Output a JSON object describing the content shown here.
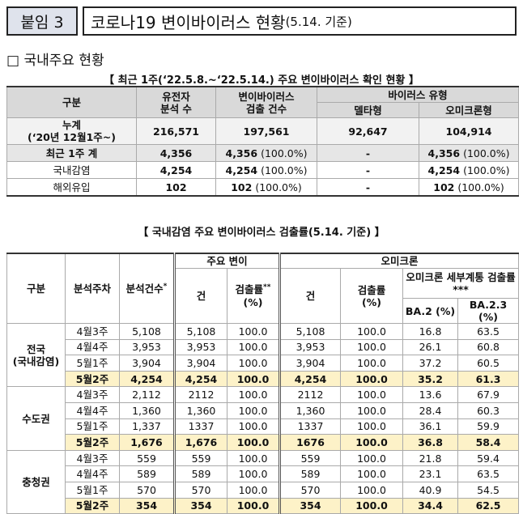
{
  "header": {
    "badge": "붙임 3",
    "title": "코로나19 변이바이러스 현황",
    "title_note": "(5.14. 기준)"
  },
  "section": "□ 국내주요 현황",
  "table1": {
    "caption": "【 최근 1주(‘22.5.8.~‘22.5.14.) 주요 변이바이러스 확인 현황 】",
    "head": {
      "gubun": "구분",
      "analysis": "유전자\n분석 수",
      "detect": "변이바이러스\n검출 건수",
      "type": "바이러스 유형",
      "delta": "델타형",
      "omicron": "오미크론형"
    },
    "rows": [
      [
        "누계\n(‘20년 12월1주~)",
        "216,571",
        "197,561",
        "92,647",
        "104,914"
      ],
      [
        "최근 1주 계",
        "4,356",
        [
          "4,356",
          "(100.0%)"
        ],
        "-",
        [
          "4,356",
          "(100.0%)"
        ]
      ],
      [
        "국내감염",
        "4,254",
        [
          "4,254",
          "(100.0%)"
        ],
        "-",
        [
          "4,254",
          "(100.0%)"
        ]
      ],
      [
        "해외유입",
        "102",
        [
          "102",
          "(100.0%)"
        ],
        "-",
        [
          "102",
          "(100.0%)"
        ]
      ]
    ]
  },
  "table2": {
    "caption": "【 국내감염 주요 변이바이러스 검출률(5.14. 기준) 】",
    "head": {
      "gubun": "구분",
      "week": "분석주차",
      "count": "분석건수",
      "count_note": "*",
      "major": "주요 변이",
      "cases": "건",
      "rate": "검출률",
      "rate_note": "**",
      "rate_unit": "(%)",
      "omicron": "오미크론",
      "cases2": "건",
      "rate2": "검출률\n(%)",
      "sub": "오미크론 세부계통 검출률***",
      "ba2": "BA.2 (%)",
      "ba23": "BA.2.3 (%)"
    },
    "groups": [
      {
        "name": "전국\n(국내감염)",
        "rows": [
          [
            "4월3주",
            "5,108",
            "5,108",
            "100.0",
            "5,108",
            "100.0",
            "16.8",
            "63.5"
          ],
          [
            "4월4주",
            "3,953",
            "3,953",
            "100.0",
            "3,953",
            "100.0",
            "26.1",
            "60.8"
          ],
          [
            "5월1주",
            "3,904",
            "3,904",
            "100.0",
            "3,904",
            "100.0",
            "37.2",
            "60.5"
          ],
          [
            "5월2주",
            "4,254",
            "4,254",
            "100.0",
            "4,254",
            "100.0",
            "35.2",
            "61.3"
          ]
        ]
      },
      {
        "name": "수도권",
        "rows": [
          [
            "4월3주",
            "2,112",
            "2112",
            "100.0",
            "2112",
            "100.0",
            "13.6",
            "67.9"
          ],
          [
            "4월4주",
            "1,360",
            "1,360",
            "100.0",
            "1,360",
            "100.0",
            "28.4",
            "60.3"
          ],
          [
            "5월1주",
            "1,337",
            "1337",
            "100.0",
            "1337",
            "100.0",
            "36.1",
            "59.9"
          ],
          [
            "5월2주",
            "1,676",
            "1,676",
            "100.0",
            "1676",
            "100.0",
            "36.8",
            "58.4"
          ]
        ]
      },
      {
        "name": "충청권",
        "rows": [
          [
            "4월3주",
            "559",
            "559",
            "100.0",
            "559",
            "100.0",
            "21.8",
            "59.4"
          ],
          [
            "4월4주",
            "589",
            "589",
            "100.0",
            "589",
            "100.0",
            "23.1",
            "63.5"
          ],
          [
            "5월1주",
            "570",
            "570",
            "100.0",
            "570",
            "100.0",
            "40.9",
            "54.5"
          ],
          [
            "5월2주",
            "354",
            "354",
            "100.0",
            "354",
            "100.0",
            "34.4",
            "62.5"
          ]
        ]
      }
    ]
  }
}
